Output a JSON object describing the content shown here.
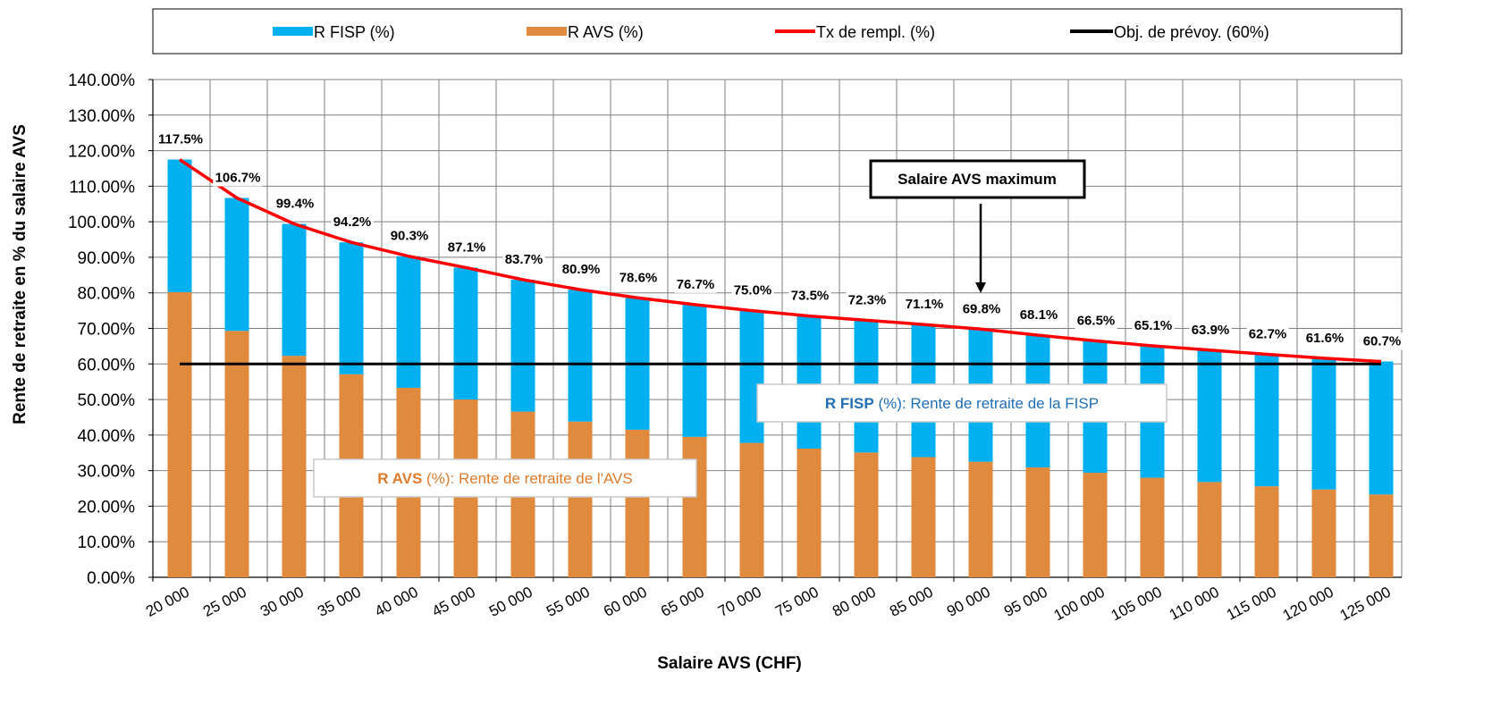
{
  "chart_data": {
    "type": "bar",
    "stacked": true,
    "xlabel": "Salaire AVS  (CHF)",
    "ylabel": "Rente de retraite en % du salaire AVS",
    "ylim": [
      0,
      140
    ],
    "ytick_step": 10,
    "ytick_suffix": "%",
    "grid": true,
    "legend_position": "top",
    "categories": [
      "20 000",
      "25 000",
      "30 000",
      "35 000",
      "40 000",
      "45 000",
      "50 000",
      "55 000",
      "60 000",
      "65 000",
      "70 000",
      "75 000",
      "80 000",
      "85 000",
      "90 000",
      "95 000",
      "100 000",
      "105 000",
      "110 000",
      "115 000",
      "120 000",
      "125 000"
    ],
    "series": [
      {
        "name": "R FISP (%)",
        "kind": "bar",
        "color": "#00b0f0",
        "values": [
          37.3,
          37.4,
          37.1,
          37.1,
          37.0,
          37.1,
          37.1,
          37.1,
          37.1,
          37.2,
          37.2,
          37.3,
          37.2,
          37.3,
          37.3,
          37.2,
          37.1,
          37.1,
          37.1,
          37.1,
          36.9,
          37.4
        ]
      },
      {
        "name": "R AVS (%)",
        "kind": "bar",
        "color": "#e08a3e",
        "values": [
          80.2,
          69.3,
          62.3,
          57.1,
          53.3,
          50.0,
          46.6,
          43.8,
          41.5,
          39.5,
          37.8,
          36.2,
          35.1,
          33.8,
          32.5,
          30.9,
          29.4,
          28.0,
          26.8,
          25.6,
          24.7,
          23.3
        ]
      },
      {
        "name": "Tx de rempl. (%)",
        "kind": "line",
        "color": "#ff0000",
        "values": [
          117.5,
          106.7,
          99.4,
          94.2,
          90.3,
          87.1,
          83.7,
          80.9,
          78.6,
          76.7,
          75.0,
          73.5,
          72.3,
          71.1,
          69.8,
          68.1,
          66.5,
          65.1,
          63.9,
          62.7,
          61.6,
          60.7
        ],
        "labels": [
          "117.5%",
          "106.7%",
          "99.4%",
          "94.2%",
          "90.3%",
          "87.1%",
          "83.7%",
          "80.9%",
          "78.6%",
          "76.7%",
          "75.0%",
          "73.5%",
          "72.3%",
          "71.1%",
          "69.8%",
          "68.1%",
          "66.5%",
          "65.1%",
          "63.9%",
          "62.7%",
          "61.6%",
          "60.7%"
        ]
      },
      {
        "name": "Obj. de prévoy. (60%)",
        "kind": "line",
        "color": "#000000",
        "values": [
          60,
          60,
          60,
          60,
          60,
          60,
          60,
          60,
          60,
          60,
          60,
          60,
          60,
          60,
          60,
          60,
          60,
          60,
          60,
          60,
          60,
          60
        ]
      }
    ],
    "annotations": {
      "max_salary": {
        "text": "Salaire AVS maximum",
        "category": "90 000"
      },
      "fisp_note": {
        "bold": "R FISP",
        "rest_a": " (%)",
        "rest_b": ": Rente de retraite de la FISP",
        "color": "#1f6eb5"
      },
      "avs_note": {
        "bold": "R AVS",
        "rest_a": " (%)",
        "rest_b": ": Rente de retraite de l'AVS",
        "color": "#e07a2a"
      }
    }
  }
}
